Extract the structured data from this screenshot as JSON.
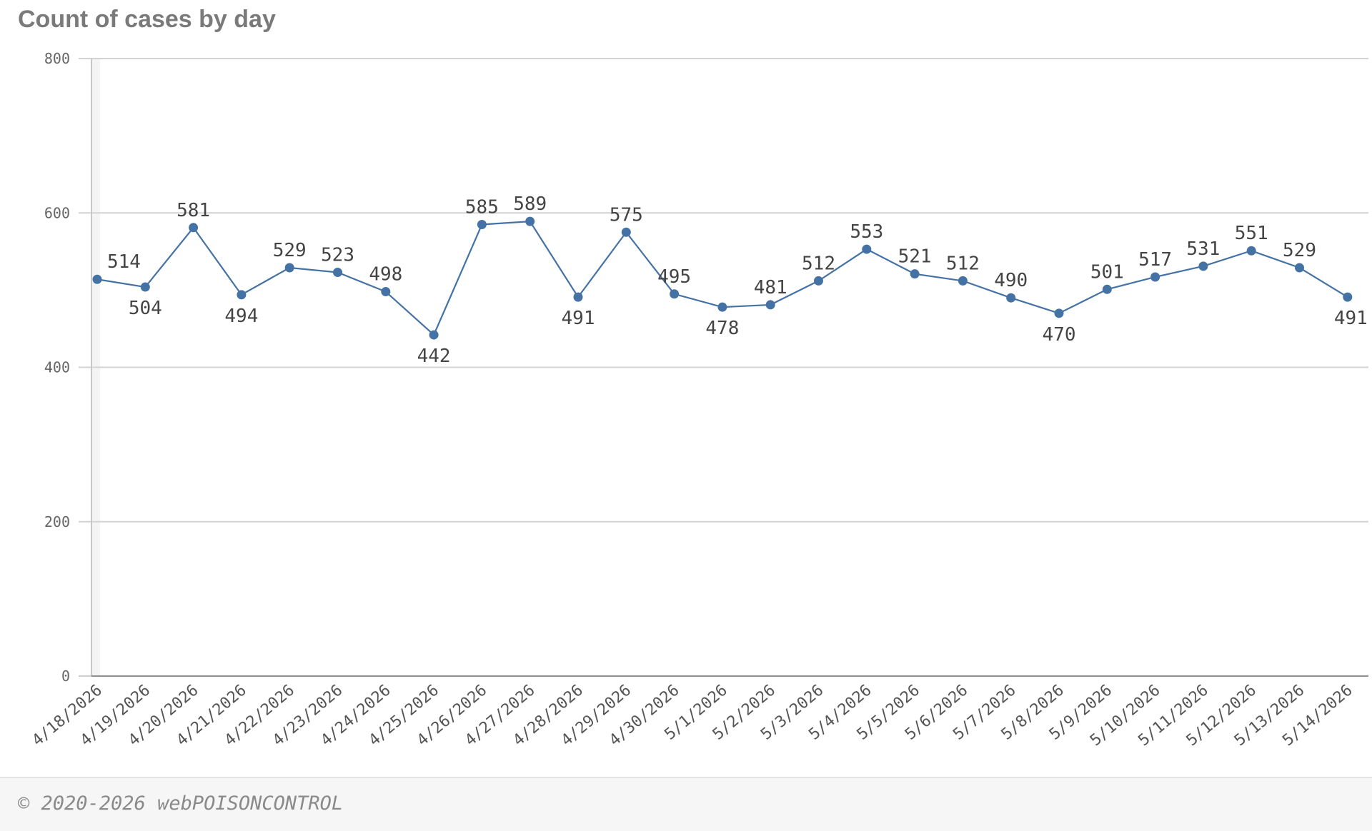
{
  "title": "Count of cases by day",
  "footer": "© 2020-2026 webPOISONCONTROL",
  "chart_data": {
    "type": "line",
    "title": "Count of cases by day",
    "xlabel": "",
    "ylabel": "",
    "ylim": [
      0,
      800
    ],
    "yticks": [
      0,
      200,
      400,
      600,
      800
    ],
    "grid": true,
    "line_color": "#4472a4",
    "categories": [
      "4/18/2026",
      "4/19/2026",
      "4/20/2026",
      "4/21/2026",
      "4/22/2026",
      "4/23/2026",
      "4/24/2026",
      "4/25/2026",
      "4/26/2026",
      "4/27/2026",
      "4/28/2026",
      "4/29/2026",
      "4/30/2026",
      "5/1/2026",
      "5/2/2026",
      "5/3/2026",
      "5/4/2026",
      "5/5/2026",
      "5/6/2026",
      "5/7/2026",
      "5/8/2026",
      "5/9/2026",
      "5/10/2026",
      "5/11/2026",
      "5/12/2026",
      "5/13/2026",
      "5/14/2026"
    ],
    "values": [
      514,
      504,
      581,
      494,
      529,
      523,
      498,
      442,
      585,
      589,
      491,
      575,
      495,
      478,
      481,
      512,
      553,
      521,
      512,
      490,
      470,
      501,
      517,
      531,
      551,
      529,
      491
    ],
    "label_position": [
      "above",
      "below",
      "above",
      "below",
      "above",
      "above",
      "above",
      "below",
      "above",
      "above",
      "below",
      "above",
      "above",
      "below",
      "above",
      "above",
      "above",
      "above",
      "above",
      "above",
      "below",
      "above",
      "above",
      "above",
      "above",
      "above",
      "below"
    ]
  }
}
